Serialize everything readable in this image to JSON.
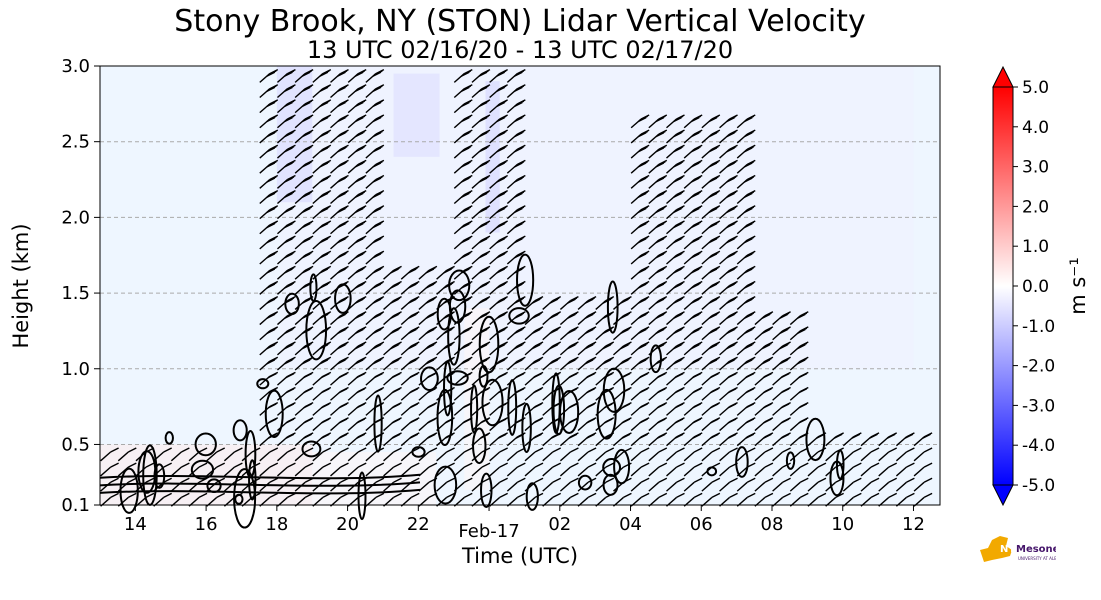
{
  "title": "Stony Brook, NY (STON) Lidar Vertical Velocity",
  "subtitle": "13 UTC 02/16/20 - 13 UTC 02/17/20",
  "logo_text": "NYS Mesonet",
  "logo_subtext": "UNIVERSITY AT ALBANY",
  "chart_data": {
    "type": "heatmap",
    "xlabel": "Time (UTC)",
    "ylabel": "Height (km)",
    "x_ticks": [
      "14",
      "16",
      "18",
      "20",
      "22",
      "Feb-17",
      "02",
      "04",
      "06",
      "08",
      "10",
      "12"
    ],
    "x_tick_hours": [
      14,
      16,
      18,
      20,
      22,
      24,
      26,
      28,
      30,
      32,
      34,
      36
    ],
    "xlim_hours": [
      13,
      36.75
    ],
    "y_ticks": [
      "0.1",
      "0.5",
      "1.0",
      "1.5",
      "2.0",
      "2.5",
      "3.0"
    ],
    "y_tick_values": [
      0.1,
      0.5,
      1.0,
      1.5,
      2.0,
      2.5,
      3.0
    ],
    "ylim": [
      0.1,
      3.0
    ],
    "grid": "horizontal dashed",
    "colorbar": {
      "label": "m s⁻¹",
      "range": [
        -5.0,
        5.0
      ],
      "ticks": [
        "5.0",
        "4.0",
        "3.0",
        "2.0",
        "1.0",
        "0.0",
        "-1.0",
        "-2.0",
        "-3.0",
        "-4.0",
        "-5.0"
      ],
      "tick_values": [
        5,
        4,
        3,
        2,
        1,
        0,
        -1,
        -2,
        -3,
        -4,
        -5
      ],
      "colormap": "bwr",
      "low_color": "#0000ff",
      "mid_color": "#ffffff",
      "high_color": "#ff0000",
      "extend": "both"
    },
    "background_value_color": "#eef6ff",
    "regions": [
      {
        "type": "weak-downward",
        "t": [
          18.1,
          36.0
        ],
        "z": [
          1.0,
          3.0
        ],
        "value": -0.3
      },
      {
        "type": "weak-downward",
        "t": [
          18.0,
          19.0
        ],
        "z": [
          2.1,
          3.0
        ],
        "value": -0.8
      },
      {
        "type": "weak-downward",
        "t": [
          21.3,
          22.6
        ],
        "z": [
          2.4,
          2.95
        ],
        "value": -0.7
      },
      {
        "type": "weak-downward",
        "t": [
          23.9,
          24.3
        ],
        "z": [
          1.9,
          2.9
        ],
        "value": -0.9
      },
      {
        "type": "weak-upward",
        "t": [
          13.0,
          19.0
        ],
        "z": [
          0.1,
          0.5
        ],
        "value": 0.4
      },
      {
        "type": "weak-upward",
        "t": [
          19.0,
          22.5
        ],
        "z": [
          0.1,
          0.45
        ],
        "value": 0.2
      },
      {
        "type": "weak-upward",
        "t": [
          23.3,
          24.0
        ],
        "z": [
          0.2,
          1.4
        ],
        "value": 0.2
      }
    ],
    "wind_barbs": true,
    "contours": true
  }
}
